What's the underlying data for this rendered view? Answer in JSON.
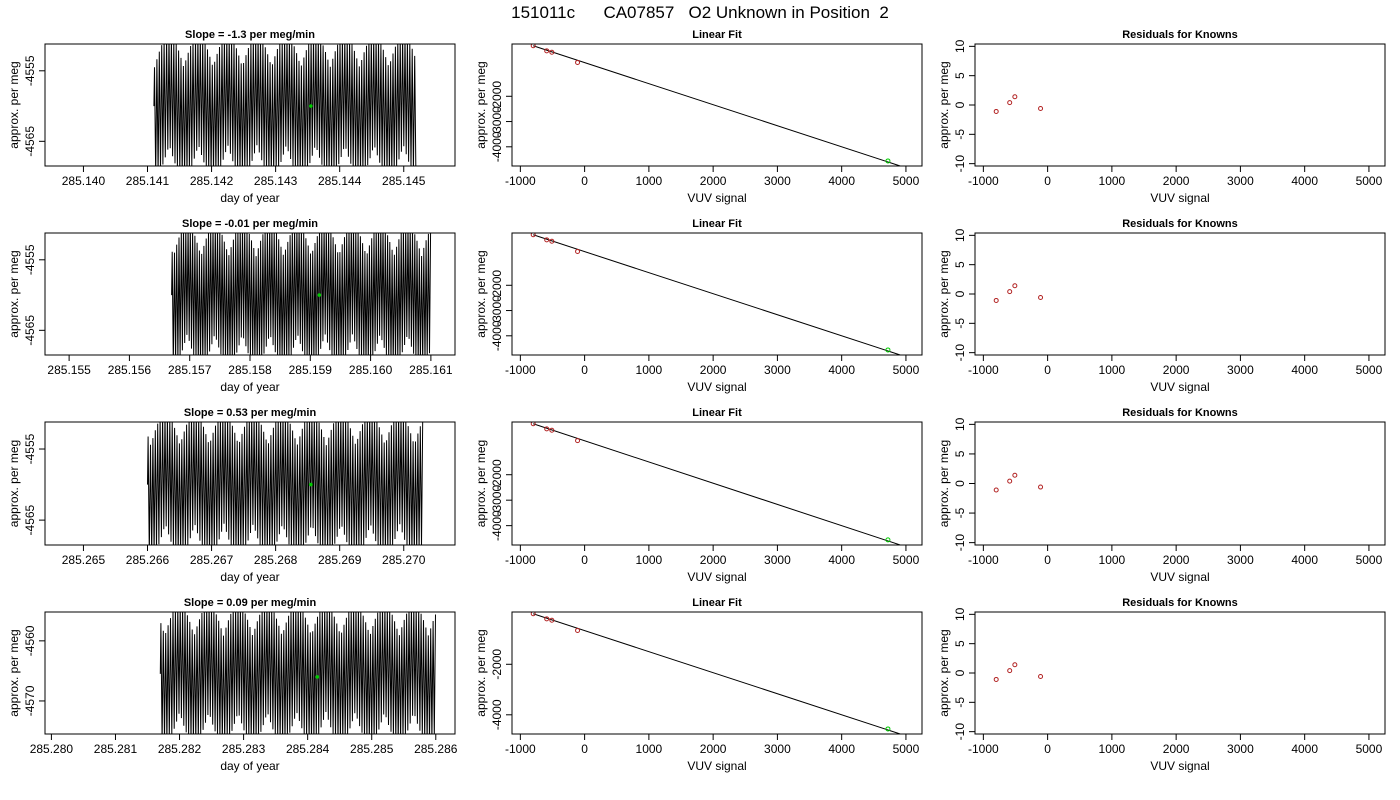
{
  "figure_title": "151011c      CA07857   O2 Unknown in Position  2",
  "colors": {
    "line": "#000000",
    "known_points": "#b22222",
    "unknown_point": "#00cc00",
    "frame": "#000000"
  },
  "chart_data": [
    {
      "type": "line",
      "title": "Slope =  -1.3  per meg/min",
      "xlabel": "day of year",
      "ylabel": "approx. per meg",
      "xticks": [
        "285.140",
        "285.141",
        "285.142",
        "285.143",
        "285.144",
        "285.145"
      ],
      "yticks": [
        "-4555",
        "-4565"
      ],
      "xlim": [
        285.1394,
        285.1458
      ],
      "ylim": [
        -4568.5,
        -4551.2
      ],
      "line_x_range": [
        285.1411,
        285.1452
      ],
      "line_y_range": [
        -4570,
        -4550
      ],
      "oscillation_period_days": 3.76e-05,
      "highlight_point": {
        "x": 285.14355,
        "y": -4560
      }
    },
    {
      "type": "scatter",
      "title": "Linear Fit",
      "xlabel": "VUV signal",
      "ylabel": "approx. per meg",
      "xticks": [
        "-1000",
        "0",
        "1000",
        "2000",
        "3000",
        "4000",
        "5000"
      ],
      "yticks": [
        "-2000",
        "-3000",
        "-4000"
      ],
      "xlim": [
        -1130,
        5250
      ],
      "ylim": [
        -4760,
        70
      ],
      "knowns": [
        {
          "x": -800,
          "y": 0
        },
        {
          "x": -590,
          "y": -200
        },
        {
          "x": -510,
          "y": -255
        },
        {
          "x": -110,
          "y": -660
        }
      ],
      "unknown": {
        "x": 4720,
        "y": -4560
      },
      "fit_line": {
        "x": [
          -800,
          4960
        ],
        "y": [
          0,
          -4800
        ]
      }
    },
    {
      "type": "scatter",
      "title": "Residuals for Knowns",
      "xlabel": "VUV signal",
      "ylabel": "approx. per meg",
      "xticks": [
        "-1000",
        "0",
        "1000",
        "2000",
        "3000",
        "4000",
        "5000"
      ],
      "yticks": [
        "-10",
        "-5",
        "0",
        "5",
        "10"
      ],
      "xlim": [
        -1130,
        5250
      ],
      "ylim": [
        -10.4,
        10.4
      ],
      "points": [
        {
          "x": -800,
          "y": -1.1
        },
        {
          "x": -590,
          "y": 0.4
        },
        {
          "x": -510,
          "y": 1.4
        },
        {
          "x": -110,
          "y": -0.6
        }
      ]
    },
    {
      "type": "line",
      "title": "Slope =  -0.01  per meg/min",
      "xlabel": "day of year",
      "ylabel": "approx. per meg",
      "xticks": [
        "285.155",
        "285.156",
        "285.157",
        "285.158",
        "285.159",
        "285.160",
        "285.161"
      ],
      "yticks": [
        "-4555",
        "-4565"
      ],
      "xlim": [
        285.1546,
        285.1614
      ],
      "ylim": [
        -4568.5,
        -4551.2
      ],
      "line_x_range": [
        285.1567,
        285.161
      ],
      "line_y_range": [
        -4570,
        -4550
      ],
      "oscillation_period_days": 3.76e-05,
      "highlight_point": {
        "x": 285.15915,
        "y": -4560
      }
    },
    {
      "type": "scatter",
      "title": "Linear Fit",
      "xlabel": "VUV signal",
      "ylabel": "approx. per meg",
      "xticks": [
        "-1000",
        "0",
        "1000",
        "2000",
        "3000",
        "4000",
        "5000"
      ],
      "yticks": [
        "-2000",
        "-3000",
        "-4000"
      ],
      "xlim": [
        -1130,
        5250
      ],
      "ylim": [
        -4760,
        70
      ],
      "knowns": [
        {
          "x": -800,
          "y": 0
        },
        {
          "x": -590,
          "y": -200
        },
        {
          "x": -510,
          "y": -255
        },
        {
          "x": -110,
          "y": -660
        }
      ],
      "unknown": {
        "x": 4720,
        "y": -4560
      },
      "fit_line": {
        "x": [
          -800,
          4960
        ],
        "y": [
          0,
          -4800
        ]
      }
    },
    {
      "type": "scatter",
      "title": "Residuals for Knowns",
      "xlabel": "VUV signal",
      "ylabel": "approx. per meg",
      "xticks": [
        "-1000",
        "0",
        "1000",
        "2000",
        "3000",
        "4000",
        "5000"
      ],
      "yticks": [
        "-10",
        "-5",
        "0",
        "5",
        "10"
      ],
      "xlim": [
        -1130,
        5250
      ],
      "ylim": [
        -10.4,
        10.4
      ],
      "points": [
        {
          "x": -800,
          "y": -1.1
        },
        {
          "x": -590,
          "y": 0.4
        },
        {
          "x": -510,
          "y": 1.4
        },
        {
          "x": -110,
          "y": -0.6
        }
      ]
    },
    {
      "type": "line",
      "title": "Slope =  0.53  per meg/min",
      "xlabel": "day of year",
      "ylabel": "approx. per meg",
      "xticks": [
        "285.265",
        "285.266",
        "285.267",
        "285.268",
        "285.269",
        "285.270"
      ],
      "yticks": [
        "-4555",
        "-4565"
      ],
      "xlim": [
        285.2644,
        285.2708
      ],
      "ylim": [
        -4568.5,
        -4551.2
      ],
      "line_x_range": [
        285.266,
        285.2703
      ],
      "line_y_range": [
        -4570,
        -4550
      ],
      "oscillation_period_days": 3.76e-05,
      "highlight_point": {
        "x": 285.26855,
        "y": -4560
      }
    },
    {
      "type": "scatter",
      "title": "Linear Fit",
      "xlabel": "VUV signal",
      "ylabel": "approx. per meg",
      "xticks": [
        "-1000",
        "0",
        "1000",
        "2000",
        "3000",
        "4000",
        "5000"
      ],
      "yticks": [
        "-2000",
        "-3000",
        "-4000"
      ],
      "xlim": [
        -1130,
        5250
      ],
      "ylim": [
        -4760,
        70
      ],
      "knowns": [
        {
          "x": -800,
          "y": 0
        },
        {
          "x": -590,
          "y": -200
        },
        {
          "x": -510,
          "y": -255
        },
        {
          "x": -110,
          "y": -660
        }
      ],
      "unknown": {
        "x": 4720,
        "y": -4560
      },
      "fit_line": {
        "x": [
          -800,
          4960
        ],
        "y": [
          0,
          -4800
        ]
      }
    },
    {
      "type": "scatter",
      "title": "Residuals for Knowns",
      "xlabel": "VUV signal",
      "ylabel": "approx. per meg",
      "xticks": [
        "-1000",
        "0",
        "1000",
        "2000",
        "3000",
        "4000",
        "5000"
      ],
      "yticks": [
        "-10",
        "-5",
        "0",
        "5",
        "10"
      ],
      "xlim": [
        -1130,
        5250
      ],
      "ylim": [
        -10.4,
        10.4
      ],
      "points": [
        {
          "x": -800,
          "y": -1.1
        },
        {
          "x": -590,
          "y": 0.4
        },
        {
          "x": -510,
          "y": 1.4
        },
        {
          "x": -110,
          "y": -0.6
        }
      ]
    },
    {
      "type": "line",
      "title": "Slope =  0.09  per meg/min",
      "xlabel": "day of year",
      "ylabel": "approx. per meg",
      "xticks": [
        "285.280",
        "285.281",
        "285.282",
        "285.283",
        "285.284",
        "285.285",
        "285.286"
      ],
      "yticks": [
        "-4560",
        "-4570"
      ],
      "xlim": [
        285.2799,
        285.2863
      ],
      "ylim": [
        -4575.5,
        -4555.2
      ],
      "line_x_range": [
        285.2817,
        285.286
      ],
      "line_y_range": [
        -4577,
        -4554
      ],
      "oscillation_period_days": 3.76e-05,
      "highlight_point": {
        "x": 285.28415,
        "y": -4566
      }
    },
    {
      "type": "scatter",
      "title": "Linear Fit",
      "xlabel": "VUV signal",
      "ylabel": "approx. per meg",
      "xticks": [
        "-1000",
        "0",
        "1000",
        "2000",
        "3000",
        "4000",
        "5000"
      ],
      "yticks": [
        "-2000",
        "-4000"
      ],
      "xlim": [
        -1130,
        5250
      ],
      "ylim": [
        -4760,
        70
      ],
      "knowns": [
        {
          "x": -800,
          "y": 0
        },
        {
          "x": -590,
          "y": -200
        },
        {
          "x": -510,
          "y": -255
        },
        {
          "x": -110,
          "y": -660
        }
      ],
      "unknown": {
        "x": 4720,
        "y": -4560
      },
      "fit_line": {
        "x": [
          -800,
          4960
        ],
        "y": [
          0,
          -4800
        ]
      }
    },
    {
      "type": "scatter",
      "title": "Residuals for Knowns",
      "xlabel": "VUV signal",
      "ylabel": "approx. per meg",
      "xticks": [
        "-1000",
        "0",
        "1000",
        "2000",
        "3000",
        "4000",
        "5000"
      ],
      "yticks": [
        "-10",
        "-5",
        "0",
        "5",
        "10"
      ],
      "xlim": [
        -1130,
        5250
      ],
      "ylim": [
        -10.4,
        10.4
      ],
      "points": [
        {
          "x": -800,
          "y": -1.1
        },
        {
          "x": -590,
          "y": 0.4
        },
        {
          "x": -510,
          "y": 1.4
        },
        {
          "x": -110,
          "y": -0.6
        }
      ]
    }
  ]
}
